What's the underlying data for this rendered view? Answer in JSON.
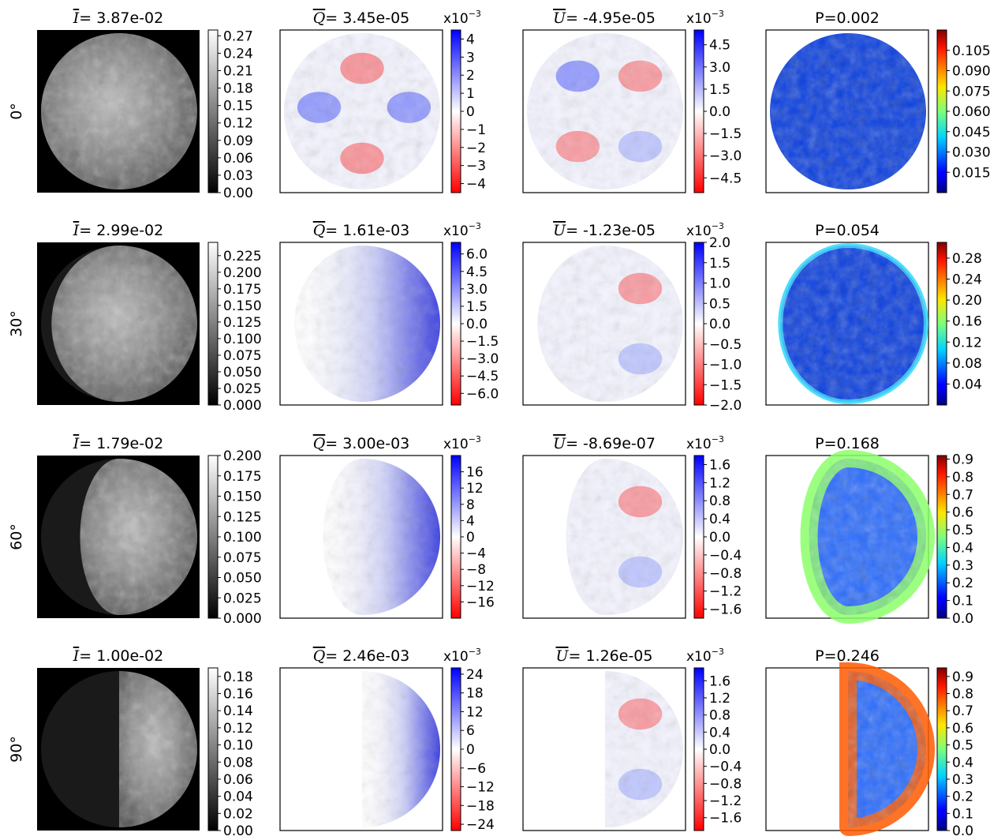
{
  "figure": {
    "row_labels": [
      "0°",
      "30°",
      "60°",
      "90°"
    ],
    "colorbar_multiplier": "x10",
    "colorbar_exponent": "−3"
  },
  "chart_data": [
    {
      "type": "heatmap",
      "panel": "I",
      "row": 0,
      "angle": "0°",
      "title_symbol": "I",
      "title": "= 3.87e-02",
      "cmap": "gray",
      "colorbar_ticks": [
        "0.27",
        "0.24",
        "0.21",
        "0.18",
        "0.15",
        "0.12",
        "0.09",
        "0.06",
        "0.03",
        "0.00"
      ],
      "colorbar_range": [
        0,
        0.28
      ],
      "phase": 0
    },
    {
      "type": "heatmap",
      "panel": "Q",
      "row": 0,
      "angle": "0°",
      "title_symbol": "Q",
      "title": "= 3.45e-05",
      "cmap": "bwr",
      "scale_label": true,
      "colorbar_ticks": [
        "4",
        "3",
        "2",
        "1",
        "0",
        "−1",
        "−2",
        "−3",
        "−4"
      ],
      "colorbar_range": [
        -4.5,
        4.5
      ],
      "phase": 0
    },
    {
      "type": "heatmap",
      "panel": "U",
      "row": 0,
      "angle": "0°",
      "title_symbol": "U",
      "title": "= -4.95e-05",
      "cmap": "bwr",
      "scale_label": true,
      "colorbar_ticks": [
        "4.5",
        "3.0",
        "1.5",
        "0.0",
        "−1.5",
        "−3.0",
        "−4.5"
      ],
      "colorbar_range": [
        -5.5,
        5.5
      ],
      "phase": 0
    },
    {
      "type": "heatmap",
      "panel": "P",
      "row": 0,
      "angle": "0°",
      "title": "P=0.002",
      "cmap": "jet",
      "colorbar_ticks": [
        "0.105",
        "0.090",
        "0.075",
        "0.060",
        "0.045",
        "0.030",
        "0.015"
      ],
      "colorbar_range": [
        0,
        0.12
      ],
      "phase": 0
    },
    {
      "type": "heatmap",
      "panel": "I",
      "row": 1,
      "angle": "30°",
      "title_symbol": "I",
      "title": "= 2.99e-02",
      "cmap": "gray",
      "colorbar_ticks": [
        "0.225",
        "0.200",
        "0.175",
        "0.150",
        "0.125",
        "0.100",
        "0.075",
        "0.050",
        "0.025",
        "0.000"
      ],
      "colorbar_range": [
        0,
        0.245
      ],
      "phase": 30
    },
    {
      "type": "heatmap",
      "panel": "Q",
      "row": 1,
      "angle": "30°",
      "title_symbol": "Q",
      "title": "= 1.61e-03",
      "cmap": "bwr",
      "scale_label": true,
      "colorbar_ticks": [
        "6.0",
        "4.5",
        "3.0",
        "1.5",
        "0.0",
        "−1.5",
        "−3.0",
        "−4.5",
        "−6.0"
      ],
      "colorbar_range": [
        -7.0,
        7.0
      ],
      "phase": 30
    },
    {
      "type": "heatmap",
      "panel": "U",
      "row": 1,
      "angle": "30°",
      "title_symbol": "U",
      "title": "= -1.23e-05",
      "cmap": "bwr",
      "scale_label": true,
      "colorbar_ticks": [
        "2.0",
        "1.5",
        "1.0",
        "0.5",
        "0.0",
        "−0.5",
        "−1.0",
        "−1.5",
        "−2.0"
      ],
      "colorbar_range": [
        -2.0,
        2.0
      ],
      "phase": 30
    },
    {
      "type": "heatmap",
      "panel": "P",
      "row": 1,
      "angle": "30°",
      "title": "P=0.054",
      "cmap": "jet",
      "colorbar_ticks": [
        "0.28",
        "0.24",
        "0.20",
        "0.16",
        "0.12",
        "0.08",
        "0.04"
      ],
      "colorbar_range": [
        0,
        0.31
      ],
      "phase": 30
    },
    {
      "type": "heatmap",
      "panel": "I",
      "row": 2,
      "angle": "60°",
      "title_symbol": "I",
      "title": "= 1.79e-02",
      "cmap": "gray",
      "colorbar_ticks": [
        "0.200",
        "0.175",
        "0.150",
        "0.125",
        "0.100",
        "0.075",
        "0.050",
        "0.025",
        "0.000"
      ],
      "colorbar_range": [
        0,
        0.2
      ],
      "phase": 60
    },
    {
      "type": "heatmap",
      "panel": "Q",
      "row": 2,
      "angle": "60°",
      "title_symbol": "Q",
      "title": "= 3.00e-03",
      "cmap": "bwr",
      "scale_label": true,
      "colorbar_ticks": [
        "16",
        "12",
        "8",
        "4",
        "0",
        "−4",
        "−8",
        "−12",
        "−16"
      ],
      "colorbar_range": [
        -20,
        20
      ],
      "phase": 60
    },
    {
      "type": "heatmap",
      "panel": "U",
      "row": 2,
      "angle": "60°",
      "title_symbol": "U",
      "title": "= -8.69e-07",
      "cmap": "bwr",
      "scale_label": true,
      "colorbar_ticks": [
        "1.6",
        "1.2",
        "0.8",
        "0.4",
        "0.0",
        "−0.4",
        "−0.8",
        "−1.2",
        "−1.6"
      ],
      "colorbar_range": [
        -1.8,
        1.8
      ],
      "phase": 60
    },
    {
      "type": "heatmap",
      "panel": "P",
      "row": 2,
      "angle": "60°",
      "title": "P=0.168",
      "cmap": "jet",
      "colorbar_ticks": [
        "0.9",
        "0.8",
        "0.7",
        "0.6",
        "0.5",
        "0.4",
        "0.3",
        "0.2",
        "0.1",
        "0.0"
      ],
      "colorbar_range": [
        0,
        0.92
      ],
      "phase": 60
    },
    {
      "type": "heatmap",
      "panel": "I",
      "row": 3,
      "angle": "90°",
      "title_symbol": "I",
      "title": "= 1.00e-02",
      "cmap": "gray",
      "colorbar_ticks": [
        "0.18",
        "0.16",
        "0.14",
        "0.12",
        "0.10",
        "0.08",
        "0.06",
        "0.04",
        "0.02",
        "0.00"
      ],
      "colorbar_range": [
        0,
        0.19
      ],
      "phase": 90
    },
    {
      "type": "heatmap",
      "panel": "Q",
      "row": 3,
      "angle": "90°",
      "title_symbol": "Q",
      "title": "= 2.46e-03",
      "cmap": "bwr",
      "scale_label": true,
      "colorbar_ticks": [
        "24",
        "18",
        "12",
        "6",
        "0",
        "−6",
        "−12",
        "−18",
        "−24"
      ],
      "colorbar_range": [
        -26,
        26
      ],
      "phase": 90
    },
    {
      "type": "heatmap",
      "panel": "U",
      "row": 3,
      "angle": "90°",
      "title_symbol": "U",
      "title": "= 1.26e-05",
      "cmap": "bwr",
      "scale_label": true,
      "colorbar_ticks": [
        "1.6",
        "1.2",
        "0.8",
        "0.4",
        "0.0",
        "−0.4",
        "−0.8",
        "−1.2",
        "−1.6"
      ],
      "colorbar_range": [
        -1.9,
        1.9
      ],
      "phase": 90
    },
    {
      "type": "heatmap",
      "panel": "P",
      "row": 3,
      "angle": "90°",
      "title": "P=0.246",
      "cmap": "jet",
      "colorbar_ticks": [
        "0.9",
        "0.8",
        "0.7",
        "0.6",
        "0.5",
        "0.4",
        "0.3",
        "0.2",
        "0.1",
        "0.0"
      ],
      "colorbar_range": [
        0,
        0.95
      ],
      "phase": 90
    }
  ]
}
